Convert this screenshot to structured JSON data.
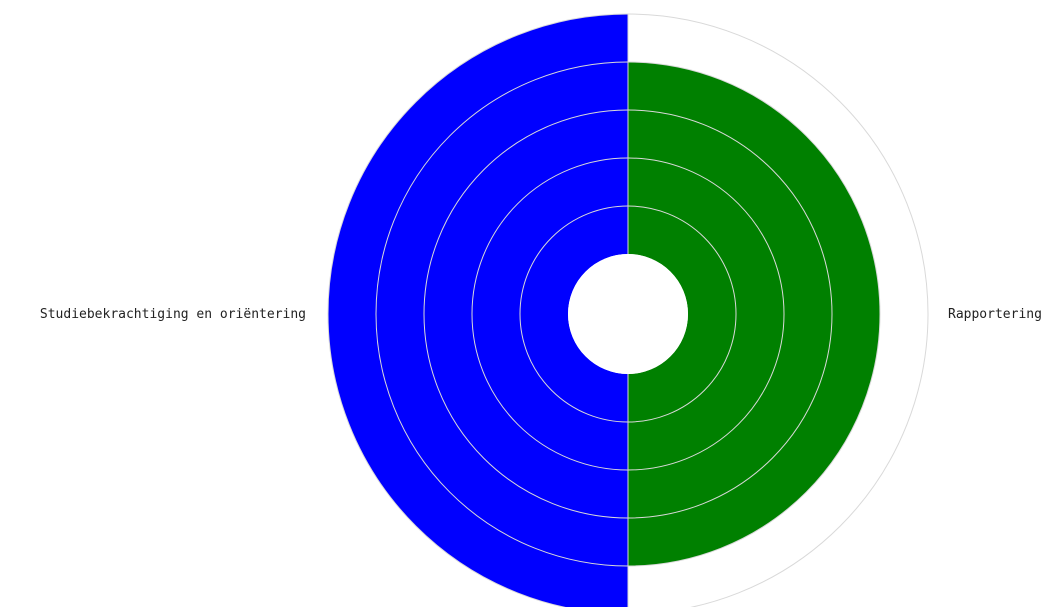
{
  "chart_data": {
    "type": "radial-bar",
    "categories": [
      "Studiebekrachtiging en oriëntering",
      "Rapportering"
    ],
    "values": [
      5,
      4
    ],
    "colors": [
      "#0000ff",
      "#008000"
    ],
    "rlim": [
      0,
      5
    ],
    "ring_count": 5,
    "ring_color": "#d9d9d9",
    "hole_fraction": 0.2,
    "grid": true,
    "legend": "none"
  }
}
